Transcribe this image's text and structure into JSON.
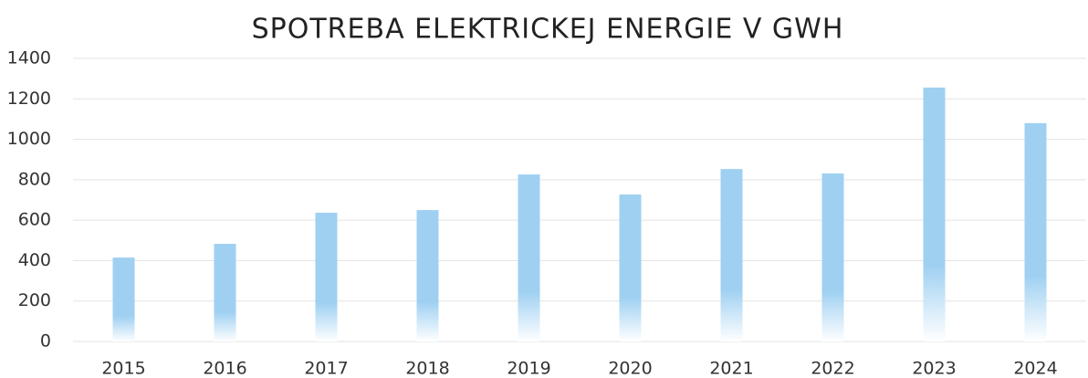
{
  "chart_data": {
    "type": "bar",
    "title": "SPOTREBA ELEKTRICKEJ ENERGIE V GWH",
    "categories": [
      "2015",
      "2016",
      "2017",
      "2018",
      "2019",
      "2020",
      "2021",
      "2022",
      "2023",
      "2024"
    ],
    "values": [
      415,
      483,
      637,
      650,
      826,
      727,
      853,
      831,
      1256,
      1080
    ],
    "color": "#9fd0f2",
    "ylim": [
      0,
      1400
    ],
    "yticks": [
      0,
      200,
      400,
      600,
      800,
      1000,
      1200,
      1400
    ],
    "grid": true
  }
}
